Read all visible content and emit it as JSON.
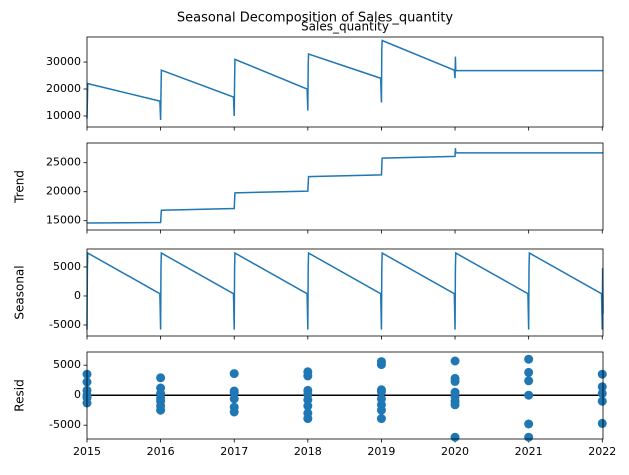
{
  "title": "Seasonal Decomposition of Sales_quantity",
  "chart_data": [
    {
      "type": "line",
      "title": "Sales_quantity",
      "color": "#1f77b4",
      "x": [
        2015,
        2015.01,
        2015.99,
        2016,
        2016.005,
        2016.01,
        2016.99,
        2017,
        2017.005,
        2017.01,
        2017.99,
        2018,
        2018.005,
        2018.01,
        2018.99,
        2019,
        2019.005,
        2019.01,
        2019.99,
        2020,
        2020.005,
        2020.01,
        2022.01
      ],
      "values": [
        9000,
        22000,
        15500,
        8500,
        18000,
        27000,
        17000,
        10000,
        23000,
        31000,
        20000,
        12000,
        29000,
        33000,
        24000,
        15000,
        35000,
        38000,
        27000,
        24000,
        32000,
        26800,
        26800
      ],
      "xlim": [
        2015,
        2022.01
      ],
      "xticks": [
        2015,
        2016,
        2017,
        2018,
        2019,
        2020,
        2021,
        2022
      ],
      "ylim": [
        5900,
        39300
      ],
      "yticks": [
        10000,
        20000,
        30000
      ]
    },
    {
      "type": "line",
      "ylabel": "Trend",
      "color": "#1f77b4",
      "x": [
        2015,
        2016,
        2016.01,
        2017,
        2017.01,
        2018,
        2018.01,
        2019,
        2019.01,
        2020,
        2020.005,
        2020.01,
        2022.01
      ],
      "values": [
        14600,
        14700,
        16800,
        17100,
        19800,
        20100,
        22600,
        22900,
        25800,
        26100,
        27500,
        26700,
        26700
      ],
      "xlim": [
        2015,
        2022.01
      ],
      "xticks": [
        2015,
        2016,
        2017,
        2018,
        2019,
        2020,
        2021,
        2022
      ],
      "ylim": [
        13400,
        28400
      ],
      "yticks": [
        15000,
        20000,
        25000
      ]
    },
    {
      "type": "line",
      "ylabel": "Seasonal",
      "color": "#1f77b4",
      "x": [
        2015,
        2015.005,
        2015.01,
        2015.99,
        2016,
        2016.005,
        2016.01,
        2016.99,
        2017,
        2017.005,
        2017.01,
        2017.99,
        2018,
        2018.005,
        2018.01,
        2018.99,
        2019,
        2019.005,
        2019.01,
        2019.99,
        2020,
        2020.005,
        2020.01,
        2020.99,
        2021,
        2021.005,
        2021.01,
        2021.99,
        2022,
        2022.005,
        2022.01
      ],
      "values": [
        -5800,
        4800,
        7400,
        400,
        -5800,
        4800,
        7400,
        400,
        -5800,
        4800,
        7400,
        400,
        -5800,
        4800,
        7400,
        400,
        -5800,
        4800,
        7400,
        400,
        -5800,
        4800,
        7400,
        400,
        -5800,
        4800,
        7400,
        400,
        -5800,
        4800,
        -3000
      ],
      "xlim": [
        2015,
        2022.01
      ],
      "xticks": [
        2015,
        2016,
        2017,
        2018,
        2019,
        2020,
        2021,
        2022
      ],
      "ylim": [
        -6900,
        8100
      ],
      "yticks": [
        -5000,
        0,
        5000
      ]
    },
    {
      "type": "scatter",
      "ylabel": "Resid",
      "color": "#1f77b4",
      "zero_line_color": "#000000",
      "x": [
        2015,
        2015,
        2015,
        2015,
        2015,
        2015,
        2016,
        2016,
        2016,
        2016,
        2016,
        2016,
        2016,
        2017,
        2017,
        2017,
        2017,
        2017,
        2017,
        2018,
        2018,
        2018,
        2018,
        2018,
        2018,
        2018,
        2018,
        2019,
        2019,
        2019,
        2019,
        2019,
        2019,
        2019,
        2019,
        2020,
        2020,
        2020,
        2020,
        2020,
        2020,
        2020,
        2020,
        2021,
        2021,
        2021,
        2021,
        2021,
        2021,
        2022,
        2022,
        2022,
        2022,
        2022
      ],
      "values": [
        3500,
        2200,
        800,
        0,
        -400,
        -1300,
        2900,
        1200,
        300,
        -500,
        -1000,
        -2500,
        -1800,
        3600,
        700,
        400,
        -600,
        -2000,
        -2800,
        3900,
        3200,
        800,
        100,
        -800,
        -1800,
        -3000,
        -3900,
        5600,
        5100,
        900,
        600,
        -600,
        -1600,
        -2500,
        -3900,
        5700,
        2800,
        2300,
        500,
        -300,
        -1000,
        -1600,
        -7000,
        6000,
        3800,
        2400,
        0,
        -4800,
        -7000,
        3500,
        1400,
        300,
        -1000,
        -4700
      ],
      "xlim": [
        2015,
        2022.01
      ],
      "xticks": [
        2015,
        2016,
        2017,
        2018,
        2019,
        2020,
        2021,
        2022
      ],
      "ylim": [
        -7300,
        7200
      ],
      "yticks": [
        -5000,
        0,
        5000
      ]
    }
  ]
}
